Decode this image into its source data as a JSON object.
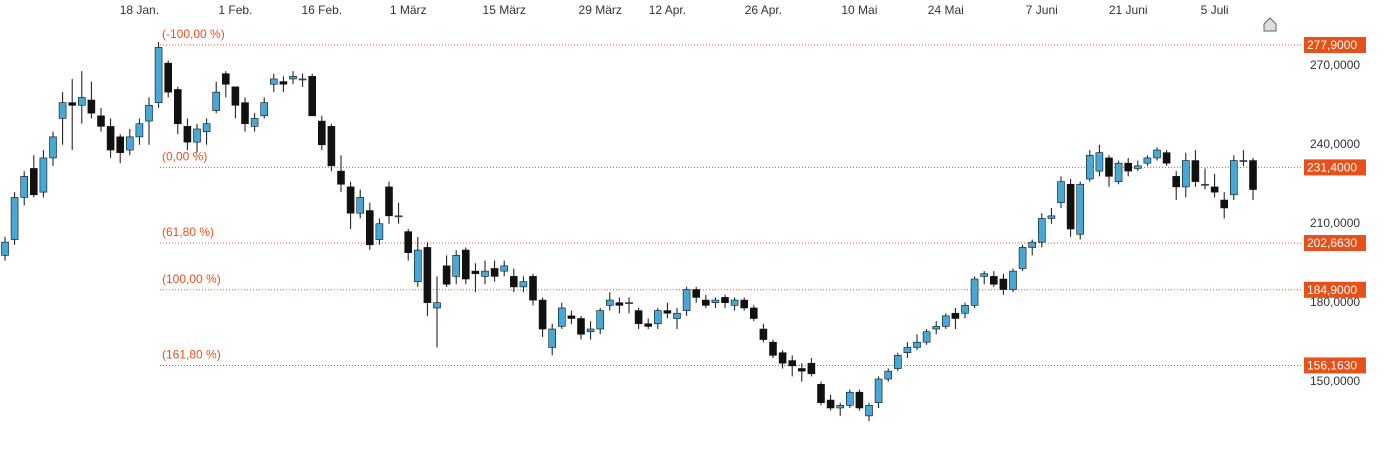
{
  "chart_data": {
    "type": "candlestick",
    "categories": [
      null,
      null,
      null,
      null,
      null,
      null,
      null,
      null,
      null,
      null,
      null,
      null,
      null,
      null,
      "18 Jan.",
      null,
      null,
      null,
      null,
      null,
      null,
      null,
      null,
      null,
      "1 Feb.",
      null,
      null,
      null,
      null,
      null,
      null,
      null,
      null,
      "16 Feb.",
      null,
      null,
      null,
      null,
      null,
      null,
      null,
      null,
      "1 März",
      null,
      null,
      null,
      null,
      null,
      null,
      null,
      null,
      null,
      "15 März",
      null,
      null,
      null,
      null,
      null,
      null,
      null,
      null,
      null,
      "29 März",
      null,
      null,
      null,
      null,
      null,
      null,
      "12 Apr.",
      null,
      null,
      null,
      null,
      null,
      null,
      null,
      null,
      null,
      "26 Apr.",
      null,
      null,
      null,
      null,
      null,
      null,
      null,
      null,
      null,
      "10 Mai",
      null,
      null,
      null,
      null,
      null,
      null,
      null,
      null,
      "24 Mai",
      null,
      null,
      null,
      null,
      null,
      null,
      null,
      null,
      null,
      "7 Juni",
      null,
      null,
      null,
      null,
      null,
      null,
      null,
      null,
      "21 Juni",
      null,
      null,
      null,
      null,
      null,
      null,
      null,
      null,
      "5 Juli",
      null,
      null,
      null,
      null
    ],
    "open": [
      198,
      204,
      220,
      231,
      222,
      235,
      250,
      256,
      255,
      257,
      251,
      247,
      243,
      238,
      243,
      249,
      256,
      271,
      261,
      247,
      241,
      245,
      253,
      267,
      262,
      256,
      247,
      251,
      263,
      264,
      265,
      265,
      266,
      249,
      247,
      230,
      224,
      214,
      215,
      204,
      224,
      213,
      207,
      188,
      201,
      178,
      194,
      190,
      200,
      192,
      190,
      193,
      192,
      190,
      186,
      190,
      181,
      163,
      171,
      175,
      174,
      169,
      170,
      179,
      180,
      180,
      177,
      172,
      172,
      177,
      174,
      177,
      185,
      181,
      180,
      182,
      179,
      181,
      178,
      170,
      165,
      161,
      158,
      155,
      157,
      149,
      143,
      140,
      141,
      146,
      137,
      142,
      151,
      155,
      161,
      163,
      165,
      170,
      171,
      176,
      176,
      179,
      190,
      190,
      189,
      185,
      193,
      201,
      203,
      212,
      218,
      225,
      206,
      227,
      230,
      235,
      226,
      233,
      231,
      233,
      235,
      237,
      228,
      224,
      234,
      225,
      224,
      219,
      221,
      234,
      234
    ],
    "high": [
      205,
      222,
      230,
      236,
      238,
      245,
      260,
      265,
      268,
      264,
      254,
      250,
      244,
      246,
      250,
      258,
      279,
      272,
      262,
      250,
      248,
      250,
      264,
      268,
      262,
      258,
      252,
      258,
      267,
      266,
      268,
      267,
      267,
      251,
      248,
      236,
      226,
      223,
      218,
      212,
      226,
      218,
      208,
      205,
      203,
      190,
      198,
      200,
      201,
      195,
      196,
      196,
      196,
      193,
      190,
      191,
      182,
      172,
      180,
      177,
      175,
      173,
      178,
      184,
      182,
      182,
      178,
      174,
      178,
      180,
      178,
      186,
      186,
      183,
      182,
      183,
      182,
      182,
      179,
      172,
      166,
      162,
      160,
      157,
      159,
      150,
      145,
      142,
      147,
      147,
      142,
      152,
      155,
      161,
      165,
      168,
      170,
      173,
      176,
      178,
      180,
      190,
      192,
      192,
      191,
      193,
      202,
      204,
      214,
      216,
      228,
      227,
      226,
      238,
      240,
      236,
      234,
      235,
      234,
      236,
      239,
      238,
      230,
      237,
      238,
      231,
      229,
      222,
      236,
      238,
      235
    ],
    "low": [
      196,
      202,
      217,
      220,
      220,
      232,
      240,
      238,
      248,
      250,
      245,
      235,
      233,
      236,
      240,
      240,
      254,
      258,
      244,
      238,
      237,
      240,
      252,
      258,
      250,
      245,
      245,
      250,
      260,
      260,
      263,
      262,
      252,
      238,
      230,
      222,
      208,
      212,
      200,
      202,
      210,
      210,
      196,
      186,
      175,
      163,
      186,
      187,
      187,
      184,
      187,
      188,
      190,
      184,
      184,
      179,
      167,
      160,
      170,
      172,
      166,
      166,
      168,
      177,
      176,
      176,
      170,
      170,
      170,
      174,
      170,
      175,
      180,
      178,
      178,
      178,
      177,
      177,
      173,
      165,
      159,
      155,
      152,
      150,
      152,
      141,
      139,
      137,
      140,
      139,
      135,
      140,
      150,
      154,
      159,
      162,
      164,
      168,
      170,
      170,
      174,
      178,
      187,
      186,
      183,
      184,
      192,
      198,
      201,
      210,
      216,
      205,
      204,
      226,
      228,
      224,
      225,
      228,
      230,
      232,
      234,
      232,
      219,
      220,
      224,
      223,
      220,
      212,
      219,
      232,
      219
    ],
    "close": [
      203,
      220,
      228,
      221,
      235,
      243,
      256,
      255,
      258,
      252,
      247,
      238,
      237,
      243,
      248,
      255,
      277,
      260,
      248,
      241,
      246,
      248,
      260,
      263,
      255,
      248,
      250,
      256,
      265,
      263,
      266,
      265,
      251,
      240,
      232,
      225,
      214,
      220,
      202,
      210,
      213,
      213,
      199,
      200,
      180,
      180,
      187,
      198,
      189,
      191,
      192,
      190,
      194,
      186,
      188,
      181,
      170,
      170,
      178,
      174,
      168,
      170,
      177,
      181,
      179,
      180,
      172,
      171,
      177,
      176,
      176,
      185,
      182,
      179,
      181,
      180,
      181,
      178,
      174,
      166,
      160,
      157,
      156,
      154,
      153,
      142,
      140,
      141,
      146,
      140,
      141,
      151,
      154,
      160,
      163,
      165,
      169,
      171,
      175,
      174,
      179,
      189,
      191,
      187,
      185,
      192,
      201,
      203,
      212,
      213,
      226,
      208,
      225,
      236,
      237,
      228,
      233,
      230,
      232,
      235,
      238,
      233,
      224,
      234,
      226,
      225,
      222,
      216,
      234,
      234,
      223
    ],
    "up_color": "#45a8d6",
    "down_color": "#111111",
    "levels": [
      {
        "name": "(-100,00 %)",
        "value": 277.9,
        "label": "277,9000"
      },
      {
        "name": "(0,00 %)",
        "value": 231.4,
        "label": "231,4000"
      },
      {
        "name": "(61,80 %)",
        "value": 202.663,
        "label": "202,6630"
      },
      {
        "name": "(100,00 %)",
        "value": 184.9,
        "label": "184,9000"
      },
      {
        "name": "(161,80 %)",
        "value": 156.163,
        "label": "156,1630"
      }
    ],
    "level_color": "#e8501a",
    "ylim": [
      121,
      295
    ],
    "yticks": [
      {
        "value": 150,
        "label": "150,0000"
      },
      {
        "value": 180,
        "label": "180,0000"
      },
      {
        "value": 210,
        "label": "210,0000"
      },
      {
        "value": 240,
        "label": "240,0000"
      },
      {
        "value": 270,
        "label": "270,0000"
      }
    ]
  }
}
